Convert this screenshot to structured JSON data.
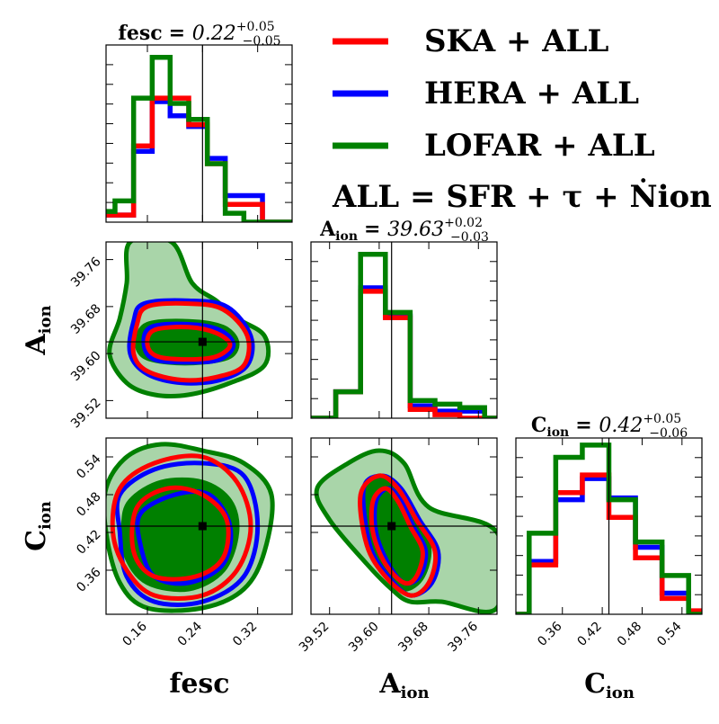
{
  "chart_data": {
    "type": "corner",
    "colors": {
      "SKA + ALL": "#ff0000",
      "HERA + ALL": "#0000ff",
      "LOFAR + ALL": "#008000",
      "fill_light": "#a9d5a9",
      "fill_dark": "#008000"
    },
    "legend": {
      "entries": [
        {
          "label": "SKA + ALL",
          "color": "#ff0000"
        },
        {
          "label": "HERA + ALL",
          "color": "#0000ff"
        },
        {
          "label": "LOFAR + ALL",
          "color": "#008000"
        }
      ],
      "note": "ALL = SFR +  τ + Ṅion",
      "placement": "top-right"
    },
    "parameters": [
      {
        "name": "fesc",
        "median": "0.22",
        "upper": "+0.05",
        "lower": "−0.05",
        "range": [
          0.1,
          0.37
        ],
        "ticks": [
          "0.16",
          "0.24",
          "0.32"
        ],
        "truth": 0.24
      },
      {
        "name": "A",
        "sub": "ion",
        "median": "39.63",
        "upper": "+0.02",
        "lower": "−0.03",
        "range": [
          39.49,
          39.79
        ],
        "ticks": [
          "39.52",
          "39.60",
          "39.68",
          "39.76"
        ],
        "truth": 39.62
      },
      {
        "name": "C",
        "sub": "ion",
        "median": "0.42",
        "upper": "+0.05",
        "lower": "−0.06",
        "range": [
          0.29,
          0.57
        ],
        "ticks": [
          "0.36",
          "0.42",
          "0.48",
          "0.54"
        ],
        "truth": 0.43
      }
    ],
    "title_eq": "=",
    "grid": false,
    "histograms": {
      "fesc": {
        "edges": [
          0.1,
          0.113,
          0.14,
          0.167,
          0.193,
          0.22,
          0.247,
          0.273,
          0.3,
          0.327,
          0.353,
          0.37
        ],
        "series": [
          {
            "name": "SKA + ALL",
            "values": [
              0.04,
              0.04,
              0.43,
              0.7,
              0.7,
              0.55,
              0.33,
              0.1,
              0.1,
              0.0,
              0.0
            ]
          },
          {
            "name": "HERA + ALL",
            "values": [
              0.04,
              0.04,
              0.4,
              0.68,
              0.6,
              0.54,
              0.36,
              0.15,
              0.15,
              0.0,
              0.0
            ]
          },
          {
            "name": "LOFAR + ALL",
            "values": [
              0.06,
              0.12,
              0.7,
              0.93,
              0.67,
              0.58,
              0.33,
              0.05,
              0.0,
              0.0,
              0.0
            ]
          }
        ]
      },
      "Aion": {
        "edges": [
          39.49,
          39.53,
          39.57,
          39.61,
          39.65,
          39.69,
          39.73,
          39.77,
          39.79
        ],
        "series": [
          {
            "name": "SKA + ALL",
            "values": [
              0.0,
              0.15,
              0.72,
              0.57,
              0.05,
              0.02,
              0.0,
              0.0
            ]
          },
          {
            "name": "HERA + ALL",
            "values": [
              0.0,
              0.15,
              0.74,
              0.58,
              0.07,
              0.04,
              0.04,
              0.0
            ]
          },
          {
            "name": "LOFAR + ALL",
            "values": [
              0.0,
              0.15,
              0.93,
              0.6,
              0.1,
              0.08,
              0.06,
              0.0
            ]
          }
        ]
      },
      "Cion": {
        "edges": [
          0.29,
          0.31,
          0.35,
          0.39,
          0.43,
          0.47,
          0.51,
          0.55,
          0.57
        ],
        "series": [
          {
            "name": "SKA + ALL",
            "values": [
              0.0,
              0.28,
              0.69,
              0.79,
              0.55,
              0.32,
              0.09,
              0.02
            ]
          },
          {
            "name": "HERA + ALL",
            "values": [
              0.0,
              0.3,
              0.65,
              0.77,
              0.66,
              0.38,
              0.12,
              0.0
            ]
          },
          {
            "name": "LOFAR + ALL",
            "values": [
              0.0,
              0.46,
              0.89,
              0.96,
              0.65,
              0.41,
              0.22,
              0.0
            ]
          }
        ]
      }
    },
    "contours": {
      "fesc_Aion": {
        "center": [
          0.24,
          39.62
        ],
        "lofar_outer": [
          [
            0.135,
            39.79
          ],
          [
            0.195,
            39.79
          ],
          [
            0.225,
            39.72
          ],
          [
            0.26,
            39.69
          ],
          [
            0.29,
            39.66
          ],
          [
            0.33,
            39.63
          ],
          [
            0.33,
            39.58
          ],
          [
            0.28,
            39.55
          ],
          [
            0.22,
            39.53
          ],
          [
            0.17,
            39.53
          ],
          [
            0.13,
            39.55
          ],
          [
            0.105,
            39.6
          ],
          [
            0.12,
            39.66
          ],
          [
            0.13,
            39.72
          ]
        ],
        "lofar_mid": [
          [
            0.16,
            39.65
          ],
          [
            0.22,
            39.655
          ],
          [
            0.27,
            39.645
          ],
          [
            0.29,
            39.62
          ],
          [
            0.28,
            39.595
          ],
          [
            0.24,
            39.585
          ],
          [
            0.19,
            39.585
          ],
          [
            0.155,
            39.595
          ],
          [
            0.145,
            39.62
          ]
        ],
        "lofar_inner": [
          [
            0.18,
            39.635
          ],
          [
            0.22,
            39.64
          ],
          [
            0.26,
            39.635
          ],
          [
            0.27,
            39.62
          ],
          [
            0.26,
            39.6
          ],
          [
            0.22,
            39.595
          ],
          [
            0.185,
            39.6
          ],
          [
            0.175,
            39.62
          ]
        ],
        "ska_outer": [
          [
            0.16,
            39.68
          ],
          [
            0.22,
            39.685
          ],
          [
            0.27,
            39.675
          ],
          [
            0.305,
            39.63
          ],
          [
            0.3,
            39.58
          ],
          [
            0.26,
            39.56
          ],
          [
            0.21,
            39.555
          ],
          [
            0.16,
            39.57
          ],
          [
            0.14,
            39.6
          ],
          [
            0.145,
            39.65
          ]
        ],
        "ska_inner": [
          [
            0.17,
            39.64
          ],
          [
            0.22,
            39.645
          ],
          [
            0.26,
            39.635
          ],
          [
            0.28,
            39.615
          ],
          [
            0.26,
            39.595
          ],
          [
            0.22,
            39.59
          ],
          [
            0.175,
            39.595
          ],
          [
            0.16,
            39.615
          ]
        ],
        "hera_outer": [
          [
            0.155,
            39.685
          ],
          [
            0.22,
            39.69
          ],
          [
            0.275,
            39.68
          ],
          [
            0.31,
            39.63
          ],
          [
            0.305,
            39.58
          ],
          [
            0.265,
            39.555
          ],
          [
            0.21,
            39.55
          ],
          [
            0.16,
            39.565
          ],
          [
            0.135,
            39.6
          ],
          [
            0.14,
            39.655
          ]
        ],
        "hera_inner": [
          [
            0.165,
            39.645
          ],
          [
            0.22,
            39.65
          ],
          [
            0.265,
            39.64
          ],
          [
            0.285,
            39.615
          ],
          [
            0.265,
            39.59
          ],
          [
            0.22,
            39.585
          ],
          [
            0.17,
            39.59
          ],
          [
            0.155,
            39.615
          ]
        ]
      },
      "fesc_Cion": {
        "center": [
          0.24,
          0.42
        ],
        "lofar_outer": [
          [
            0.1,
            0.49
          ],
          [
            0.13,
            0.54
          ],
          [
            0.18,
            0.56
          ],
          [
            0.24,
            0.55
          ],
          [
            0.3,
            0.53
          ],
          [
            0.34,
            0.48
          ],
          [
            0.33,
            0.39
          ],
          [
            0.3,
            0.33
          ],
          [
            0.24,
            0.3
          ],
          [
            0.16,
            0.3
          ],
          [
            0.12,
            0.34
          ],
          [
            0.1,
            0.42
          ]
        ],
        "lofar_mid": [
          [
            0.135,
            0.47
          ],
          [
            0.18,
            0.5
          ],
          [
            0.24,
            0.5
          ],
          [
            0.28,
            0.47
          ],
          [
            0.29,
            0.42
          ],
          [
            0.27,
            0.36
          ],
          [
            0.22,
            0.33
          ],
          [
            0.16,
            0.34
          ],
          [
            0.13,
            0.38
          ],
          [
            0.125,
            0.43
          ]
        ],
        "lofar_inner": [
          [
            0.15,
            0.45
          ],
          [
            0.2,
            0.47
          ],
          [
            0.245,
            0.46
          ],
          [
            0.265,
            0.42
          ],
          [
            0.25,
            0.37
          ],
          [
            0.21,
            0.35
          ],
          [
            0.165,
            0.36
          ],
          [
            0.145,
            0.4
          ]
        ],
        "ska_outer": [
          [
            0.12,
            0.49
          ],
          [
            0.17,
            0.53
          ],
          [
            0.24,
            0.54
          ],
          [
            0.29,
            0.5
          ],
          [
            0.31,
            0.43
          ],
          [
            0.29,
            0.36
          ],
          [
            0.24,
            0.32
          ],
          [
            0.17,
            0.32
          ],
          [
            0.13,
            0.36
          ],
          [
            0.11,
            0.42
          ]
        ],
        "ska_inner": [
          [
            0.145,
            0.46
          ],
          [
            0.19,
            0.49
          ],
          [
            0.24,
            0.48
          ],
          [
            0.275,
            0.44
          ],
          [
            0.27,
            0.38
          ],
          [
            0.23,
            0.35
          ],
          [
            0.17,
            0.35
          ],
          [
            0.14,
            0.39
          ]
        ],
        "hera_outer": [
          [
            0.12,
            0.48
          ],
          [
            0.17,
            0.52
          ],
          [
            0.24,
            0.53
          ],
          [
            0.3,
            0.51
          ],
          [
            0.32,
            0.43
          ],
          [
            0.3,
            0.35
          ],
          [
            0.24,
            0.31
          ],
          [
            0.17,
            0.31
          ],
          [
            0.13,
            0.35
          ],
          [
            0.12,
            0.42
          ]
        ],
        "hera_inner": [
          [
            0.15,
            0.45
          ],
          [
            0.2,
            0.48
          ],
          [
            0.25,
            0.48
          ],
          [
            0.28,
            0.43
          ],
          [
            0.27,
            0.37
          ],
          [
            0.22,
            0.34
          ],
          [
            0.17,
            0.35
          ],
          [
            0.15,
            0.4
          ]
        ]
      },
      "Aion_Cion": {
        "center": [
          39.62,
          0.42
        ],
        "lofar_outer": [
          [
            39.5,
            0.49
          ],
          [
            39.55,
            0.53
          ],
          [
            39.6,
            0.55
          ],
          [
            39.64,
            0.53
          ],
          [
            39.68,
            0.46
          ],
          [
            39.79,
            0.42
          ],
          [
            39.79,
            0.3
          ],
          [
            39.7,
            0.31
          ],
          [
            39.65,
            0.31
          ],
          [
            39.62,
            0.33
          ],
          [
            39.58,
            0.37
          ],
          [
            39.52,
            0.44
          ]
        ],
        "lofar_mid": [
          [
            39.575,
            0.48
          ],
          [
            39.6,
            0.51
          ],
          [
            39.625,
            0.49
          ],
          [
            39.65,
            0.45
          ],
          [
            39.68,
            0.4
          ],
          [
            39.67,
            0.35
          ],
          [
            39.64,
            0.33
          ],
          [
            39.61,
            0.36
          ],
          [
            39.58,
            0.41
          ]
        ],
        "lofar_inner": [
          [
            39.595,
            0.46
          ],
          [
            39.61,
            0.48
          ],
          [
            39.63,
            0.46
          ],
          [
            39.645,
            0.43
          ],
          [
            39.665,
            0.39
          ],
          [
            39.655,
            0.36
          ],
          [
            39.635,
            0.35
          ],
          [
            39.61,
            0.38
          ],
          [
            39.595,
            0.42
          ]
        ],
        "ska_outer": [
          [
            39.57,
            0.48
          ],
          [
            39.6,
            0.51
          ],
          [
            39.63,
            0.49
          ],
          [
            39.66,
            0.44
          ],
          [
            39.69,
            0.39
          ],
          [
            39.68,
            0.34
          ],
          [
            39.65,
            0.32
          ],
          [
            39.61,
            0.35
          ],
          [
            39.58,
            0.4
          ]
        ],
        "ska_inner": [
          [
            39.59,
            0.47
          ],
          [
            39.61,
            0.49
          ],
          [
            39.63,
            0.47
          ],
          [
            39.65,
            0.43
          ],
          [
            39.67,
            0.39
          ],
          [
            39.66,
            0.35
          ],
          [
            39.64,
            0.34
          ],
          [
            39.61,
            0.37
          ],
          [
            39.59,
            0.42
          ]
        ],
        "hera_outer": [
          [
            39.575,
            0.49
          ],
          [
            39.605,
            0.51
          ],
          [
            39.635,
            0.49
          ],
          [
            39.665,
            0.44
          ],
          [
            39.695,
            0.39
          ],
          [
            39.685,
            0.34
          ],
          [
            39.65,
            0.32
          ],
          [
            39.615,
            0.35
          ],
          [
            39.585,
            0.4
          ]
        ],
        "hera_inner": [
          [
            39.595,
            0.47
          ],
          [
            39.615,
            0.49
          ],
          [
            39.635,
            0.47
          ],
          [
            39.655,
            0.43
          ],
          [
            39.675,
            0.39
          ],
          [
            39.665,
            0.35
          ],
          [
            39.64,
            0.34
          ],
          [
            39.615,
            0.37
          ],
          [
            39.595,
            0.42
          ]
        ]
      }
    }
  }
}
